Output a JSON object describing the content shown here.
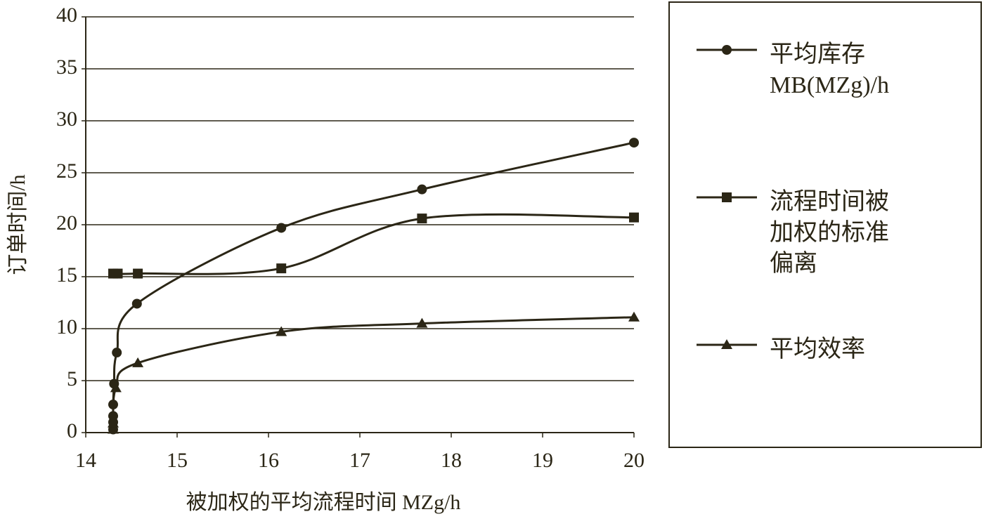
{
  "chart_data": {
    "type": "line",
    "x_label": "被加权的平均流程时间 MZg/h",
    "y_label": "订单时间/h",
    "xlim": [
      14,
      20
    ],
    "xticks": [
      14,
      15,
      16,
      17,
      18,
      19,
      20
    ],
    "ylim": [
      0,
      40
    ],
    "yticks": [
      0,
      5,
      10,
      15,
      20,
      25,
      30,
      35,
      40
    ],
    "grid": true,
    "legend": "right",
    "series": [
      {
        "name": "平均库存 MB(MZg)/h",
        "color": "#2b2616",
        "marker": "circle",
        "x": [
          14.3,
          14.3,
          14.3,
          14.3,
          14.31,
          14.34,
          14.56,
          16.14,
          17.68,
          20
        ],
        "values": [
          0.3,
          1.0,
          1.6,
          2.7,
          4.7,
          7.7,
          12.4,
          19.7,
          23.4,
          27.9
        ]
      },
      {
        "name": "流程时间被加权的标准偏离",
        "color": "#2b2616",
        "marker": "square",
        "x": [
          14.3,
          14.35,
          14.57,
          16.14,
          17.68,
          20
        ],
        "values": [
          15.3,
          15.3,
          15.3,
          15.8,
          20.6,
          20.7
        ]
      },
      {
        "name": "平均效率",
        "color": "#2b2616",
        "marker": "triangle",
        "x": [
          14.3,
          14.3,
          14.33,
          14.57,
          16.14,
          17.68,
          20
        ],
        "values": [
          0.3,
          0.9,
          4.3,
          6.7,
          9.7,
          10.5,
          11.1
        ]
      }
    ]
  }
}
